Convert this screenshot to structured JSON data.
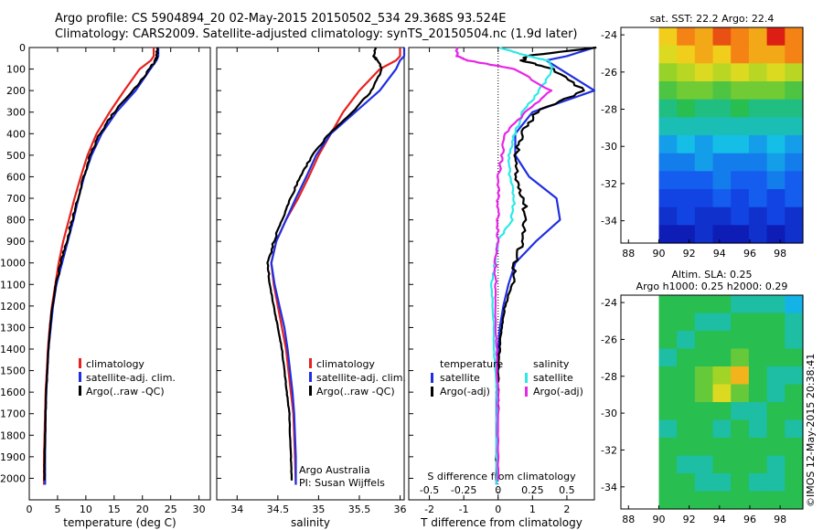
{
  "header": {
    "line1": "Argo profile: CS 5904894_20 02-May-2015 20150502_534 29.368S 93.524E",
    "line2": "Climatology: CARS2009. Satellite-adjusted climatology: synTS_20150504.nc (1.9d later)"
  },
  "credits": {
    "line1": "Argo Australia",
    "line2": "PI: Susan Wijffels"
  },
  "sidebar_stamp": "©IMOS 12-May-2015 20:38:41",
  "colors": {
    "climatology": "#e8211f",
    "satellite": "#1f2fe0",
    "argo": "#000000",
    "sal_satellite": "#2ee8e8",
    "sal_argo": "#e627e6"
  },
  "chart_data": [
    {
      "id": "temperature",
      "type": "line",
      "xlabel": "temperature (deg C)",
      "xlim": [
        0,
        32
      ],
      "ylim": [
        2100,
        0
      ],
      "y_reversed": true,
      "xticks": [
        0,
        5,
        10,
        15,
        20,
        25,
        30
      ],
      "yticks": [
        0,
        100,
        200,
        300,
        400,
        500,
        600,
        700,
        800,
        900,
        1000,
        1100,
        1200,
        1300,
        1400,
        1500,
        1600,
        1700,
        1800,
        1900,
        2000
      ],
      "legend": {
        "placement": "lower-center",
        "entries": [
          "climatology",
          "satellite-adj. clim.",
          "Argo(..raw -QC)"
        ]
      },
      "series": [
        {
          "name": "climatology",
          "color": "#e8211f",
          "x": [
            22.0,
            22.0,
            21.5,
            19.5,
            16.8,
            14.2,
            11.9,
            10.3,
            9.1,
            8.0,
            7.0,
            6.0,
            5.2,
            4.6,
            4.0,
            3.6,
            3.3,
            3.1,
            2.9,
            2.8,
            2.6,
            2.6
          ],
          "y": [
            0,
            40,
            60,
            100,
            200,
            300,
            400,
            500,
            600,
            700,
            800,
            900,
            1000,
            1100,
            1200,
            1300,
            1400,
            1500,
            1600,
            1700,
            1900,
            2030
          ]
        },
        {
          "name": "satellite-adj. clim.",
          "color": "#1f2fe0",
          "x": [
            22.8,
            22.8,
            22.5,
            21.4,
            18.8,
            15.4,
            12.8,
            11.0,
            9.7,
            8.7,
            7.8,
            6.8,
            5.8,
            4.8,
            4.2,
            3.8,
            3.4,
            3.2,
            3.0,
            2.9,
            2.8,
            2.8
          ],
          "y": [
            0,
            40,
            60,
            100,
            200,
            300,
            400,
            500,
            600,
            700,
            800,
            900,
            1000,
            1100,
            1200,
            1300,
            1400,
            1500,
            1600,
            1700,
            1900,
            2030
          ]
        },
        {
          "name": "Argo(..raw -QC)",
          "color": "#000000",
          "x": [
            22.6,
            22.6,
            22.3,
            21.3,
            18.3,
            15.0,
            12.5,
            10.8,
            9.6,
            8.6,
            7.6,
            6.6,
            5.6,
            4.7,
            4.1,
            3.7,
            3.4,
            3.2,
            3.0,
            2.9,
            2.7,
            2.7
          ],
          "y": [
            0,
            40,
            60,
            100,
            200,
            300,
            400,
            500,
            600,
            700,
            800,
            900,
            1000,
            1100,
            1200,
            1300,
            1400,
            1500,
            1600,
            1700,
            1900,
            2010
          ]
        }
      ]
    },
    {
      "id": "salinity",
      "type": "line",
      "xlabel": "salinity",
      "xlim": [
        33.75,
        36.05
      ],
      "ylim": [
        2100,
        0
      ],
      "y_reversed": true,
      "xticks": [
        34,
        34.5,
        35,
        35.5,
        36
      ],
      "xtick_labels": [
        "34",
        "34.5",
        "35",
        "35.5",
        "36"
      ],
      "legend": {
        "placement": "lower-center",
        "entries": [
          "climatology",
          "satellite-adj. clim.",
          "Argo(..raw -QC)"
        ]
      },
      "series": [
        {
          "name": "climatology",
          "color": "#e8211f",
          "x": [
            36.0,
            36.0,
            35.95,
            35.75,
            35.5,
            35.3,
            35.15,
            35.0,
            34.88,
            34.75,
            34.6,
            34.48,
            34.42,
            34.45,
            34.5,
            34.55,
            34.6,
            34.63,
            34.66,
            34.69,
            34.71,
            34.72
          ],
          "y": [
            0,
            40,
            60,
            100,
            200,
            300,
            400,
            500,
            600,
            700,
            800,
            900,
            1000,
            1100,
            1200,
            1300,
            1400,
            1500,
            1600,
            1700,
            1900,
            2030
          ]
        },
        {
          "name": "satellite-adj. clim.",
          "color": "#1f2fe0",
          "x": [
            36.05,
            36.05,
            36.0,
            35.95,
            35.75,
            35.45,
            35.15,
            34.97,
            34.85,
            34.72,
            34.6,
            34.48,
            34.42,
            34.46,
            34.52,
            34.58,
            34.62,
            34.65,
            34.68,
            34.7,
            34.72,
            34.72
          ],
          "y": [
            0,
            40,
            60,
            100,
            200,
            300,
            400,
            500,
            600,
            700,
            800,
            900,
            1000,
            1100,
            1200,
            1300,
            1400,
            1500,
            1600,
            1700,
            1900,
            2030
          ]
        },
        {
          "name": "Argo(..raw -QC)",
          "color": "#000000",
          "x": [
            35.7,
            35.68,
            35.72,
            35.78,
            35.65,
            35.42,
            35.13,
            34.92,
            34.78,
            34.65,
            34.55,
            34.45,
            34.38,
            34.4,
            34.45,
            34.5,
            34.55,
            34.58,
            34.61,
            34.64,
            34.66,
            34.67
          ],
          "y": [
            0,
            40,
            60,
            100,
            200,
            300,
            400,
            500,
            600,
            700,
            800,
            900,
            1000,
            1100,
            1200,
            1300,
            1400,
            1500,
            1600,
            1700,
            1900,
            2010
          ]
        }
      ]
    },
    {
      "id": "differences",
      "type": "line",
      "xlabel": "T difference from climatology",
      "top_xlabel": "S difference from climatology",
      "xlim": [
        -2.6,
        2.8
      ],
      "top_xlim": [
        -0.65,
        0.7
      ],
      "ylim": [
        2100,
        0
      ],
      "y_reversed": true,
      "xticks": [
        -2,
        -1,
        0,
        1,
        2
      ],
      "top_xticks": [
        -0.5,
        -0.25,
        0,
        0.25,
        0.5
      ],
      "top_xtick_labels": [
        "-0.5",
        "-0.25",
        "0",
        "0.25",
        "0.5"
      ],
      "legend": {
        "placement": "lower-center",
        "temperature_title": "temperature",
        "salinity_title": "salinity",
        "temperature_entries": [
          "satellite",
          "Argo(-adj)"
        ],
        "salinity_entries": [
          "satellite",
          "Argo(-adj)"
        ]
      },
      "series": [
        {
          "name": "satellite",
          "group": "temperature",
          "color": "#1f2fe0",
          "x": [
            2.8,
            2.0,
            1.4,
            1.8,
            2.8,
            1.0,
            0.5,
            0.5,
            0.9,
            1.7,
            1.8,
            1.1,
            0.5,
            0.3,
            0.15,
            0.05,
            0.0,
            0.0,
            -0.05,
            -0.05,
            -0.05,
            -0.05
          ],
          "y": [
            0,
            40,
            60,
            100,
            200,
            300,
            400,
            500,
            600,
            700,
            800,
            900,
            1000,
            1100,
            1200,
            1300,
            1400,
            1500,
            1600,
            1700,
            1900,
            2030
          ]
        },
        {
          "name": "Argo(-adj)",
          "group": "temperature",
          "color": "#000000",
          "x": [
            2.8,
            0.8,
            0.7,
            1.6,
            2.5,
            1.1,
            0.7,
            0.5,
            0.5,
            0.75,
            0.8,
            0.7,
            0.5,
            0.4,
            0.2,
            0.1,
            0.05,
            0.0,
            0.0,
            0.0,
            -0.05,
            -0.05
          ],
          "y": [
            0,
            40,
            60,
            100,
            200,
            300,
            400,
            500,
            600,
            700,
            800,
            900,
            1000,
            1100,
            1200,
            1300,
            1400,
            1500,
            1600,
            1700,
            1900,
            2010
          ]
        },
        {
          "name": "satellite",
          "group": "salinity",
          "color": "#2ee8e8",
          "x": [
            0.0,
            0.22,
            0.36,
            0.4,
            0.3,
            0.18,
            0.12,
            0.08,
            0.08,
            0.12,
            0.1,
            0.0,
            -0.02,
            -0.05,
            -0.04,
            -0.03,
            -0.03,
            -0.02,
            -0.01,
            -0.01,
            -0.01,
            -0.01
          ],
          "y": [
            0,
            40,
            60,
            100,
            200,
            300,
            400,
            500,
            600,
            700,
            800,
            900,
            1000,
            1100,
            1200,
            1300,
            1400,
            1500,
            1600,
            1700,
            1900,
            2030
          ]
        },
        {
          "name": "Argo(-adj)",
          "group": "salinity",
          "color": "#e627e6",
          "x": [
            -0.3,
            -0.3,
            -0.22,
            0.12,
            0.38,
            0.2,
            0.05,
            0.03,
            0.0,
            0.0,
            0.0,
            0.0,
            -0.02,
            -0.02,
            -0.02,
            -0.02,
            -0.01,
            -0.01,
            0.0,
            0.0,
            0.0,
            0.0
          ],
          "y": [
            0,
            40,
            60,
            100,
            200,
            300,
            400,
            500,
            600,
            700,
            800,
            900,
            1000,
            1100,
            1200,
            1300,
            1400,
            1500,
            1600,
            1700,
            1900,
            2010
          ]
        }
      ]
    },
    {
      "id": "sst_map",
      "type": "heatmap",
      "title": "sat. SST: 22.2  Argo: 22.4",
      "xlim": [
        87.5,
        99.5
      ],
      "ylim": [
        -35.2,
        -23.6
      ],
      "xticks": [
        88,
        90,
        92,
        94,
        96,
        98
      ],
      "yticks": [
        -24,
        -26,
        -28,
        -30,
        -32,
        -34
      ],
      "data_xlim": [
        90,
        99.5
      ],
      "rows": [
        [
          16,
          18,
          17,
          19,
          18,
          17,
          20,
          18
        ],
        [
          15,
          16,
          17,
          16,
          18,
          17,
          17,
          18
        ],
        [
          13,
          14,
          15,
          14,
          15,
          14,
          15,
          14
        ],
        [
          11,
          12,
          12,
          11,
          12,
          12,
          12,
          11
        ],
        [
          9,
          10,
          9,
          9,
          10,
          9,
          9,
          9
        ],
        [
          8,
          8,
          8,
          8,
          8,
          8,
          8,
          8
        ],
        [
          6,
          7,
          6,
          7,
          7,
          6,
          7,
          6
        ],
        [
          5,
          5,
          6,
          5,
          5,
          5,
          6,
          5
        ],
        [
          4,
          4,
          4,
          5,
          4,
          4,
          5,
          4
        ],
        [
          3,
          3,
          3,
          4,
          3,
          4,
          3,
          4
        ],
        [
          2,
          3,
          2,
          2,
          3,
          2,
          3,
          2
        ],
        [
          1,
          1,
          2,
          1,
          1,
          2,
          1,
          2
        ]
      ]
    },
    {
      "id": "sla_map",
      "type": "heatmap",
      "title_line1": "Altim. SLA: 0.25",
      "title_line2": "Argo h1000: 0.25  h2000: 0.29",
      "xlim": [
        87.5,
        99.5
      ],
      "ylim": [
        -35.2,
        -23.6
      ],
      "xticks": [
        88,
        90,
        92,
        94,
        96,
        98
      ],
      "yticks": [
        -24,
        -26,
        -28,
        -30,
        -32,
        -34
      ],
      "data_xlim": [
        90,
        99.5
      ],
      "rows": [
        [
          9,
          9,
          9,
          9,
          8,
          8,
          8,
          7
        ],
        [
          9,
          9,
          8,
          8,
          9,
          9,
          9,
          8
        ],
        [
          9,
          8,
          9,
          9,
          9,
          9,
          9,
          8
        ],
        [
          8,
          9,
          9,
          9,
          10,
          9,
          9,
          9
        ],
        [
          9,
          9,
          10,
          11,
          13,
          9,
          8,
          8
        ],
        [
          9,
          9,
          10,
          12,
          10,
          9,
          8,
          9
        ],
        [
          9,
          9,
          9,
          9,
          8,
          8,
          9,
          9
        ],
        [
          8,
          9,
          9,
          8,
          9,
          8,
          9,
          8
        ],
        [
          9,
          9,
          9,
          9,
          9,
          9,
          9,
          9
        ],
        [
          9,
          8,
          8,
          9,
          9,
          9,
          8,
          9
        ],
        [
          9,
          9,
          8,
          8,
          9,
          8,
          8,
          9
        ],
        [
          9,
          9,
          9,
          9,
          9,
          9,
          9,
          9
        ]
      ]
    }
  ]
}
